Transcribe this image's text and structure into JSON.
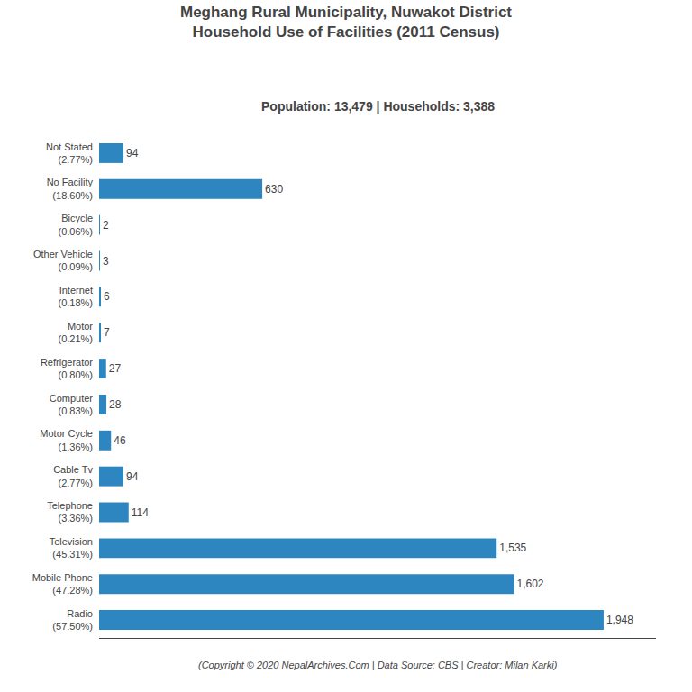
{
  "chart_data": {
    "type": "bar",
    "orientation": "horizontal",
    "title": "Meghang Rural Municipality, Nuwakot District\nHousehold Use of Facilities (2011 Census)",
    "subtitle": "Population: 13,479 | Households: 3,388",
    "annotations": [
      "(Copyright © 2020 NepalArchives.Com | Data Source: CBS | Creator: Milan Karki)"
    ],
    "categories": [
      "Not Stated\n(2.77%)",
      "No Facility\n(18.60%)",
      "Bicycle\n(0.06%)",
      "Other Vehicle\n(0.09%)",
      "Internet\n(0.18%)",
      "Motor\n(0.21%)",
      "Refrigerator\n(0.80%)",
      "Computer\n(0.83%)",
      "Motor Cycle\n(1.36%)",
      "Cable Tv\n(2.77%)",
      "Telephone\n(3.36%)",
      "Television\n(45.31%)",
      "Mobile Phone\n(47.28%)",
      "Radio\n(57.50%)"
    ],
    "values": [
      94,
      630,
      2,
      3,
      6,
      7,
      27,
      28,
      46,
      94,
      114,
      1535,
      1602,
      1948
    ],
    "value_labels": [
      "94",
      "630",
      "2",
      "3",
      "6",
      "7",
      "27",
      "28",
      "46",
      "94",
      "114",
      "1,535",
      "1,602",
      "1,948"
    ],
    "data_labels": true,
    "color": "#2e86c1",
    "xlim": [
      0,
      2150
    ],
    "tick_labels": "y",
    "grid": false
  }
}
